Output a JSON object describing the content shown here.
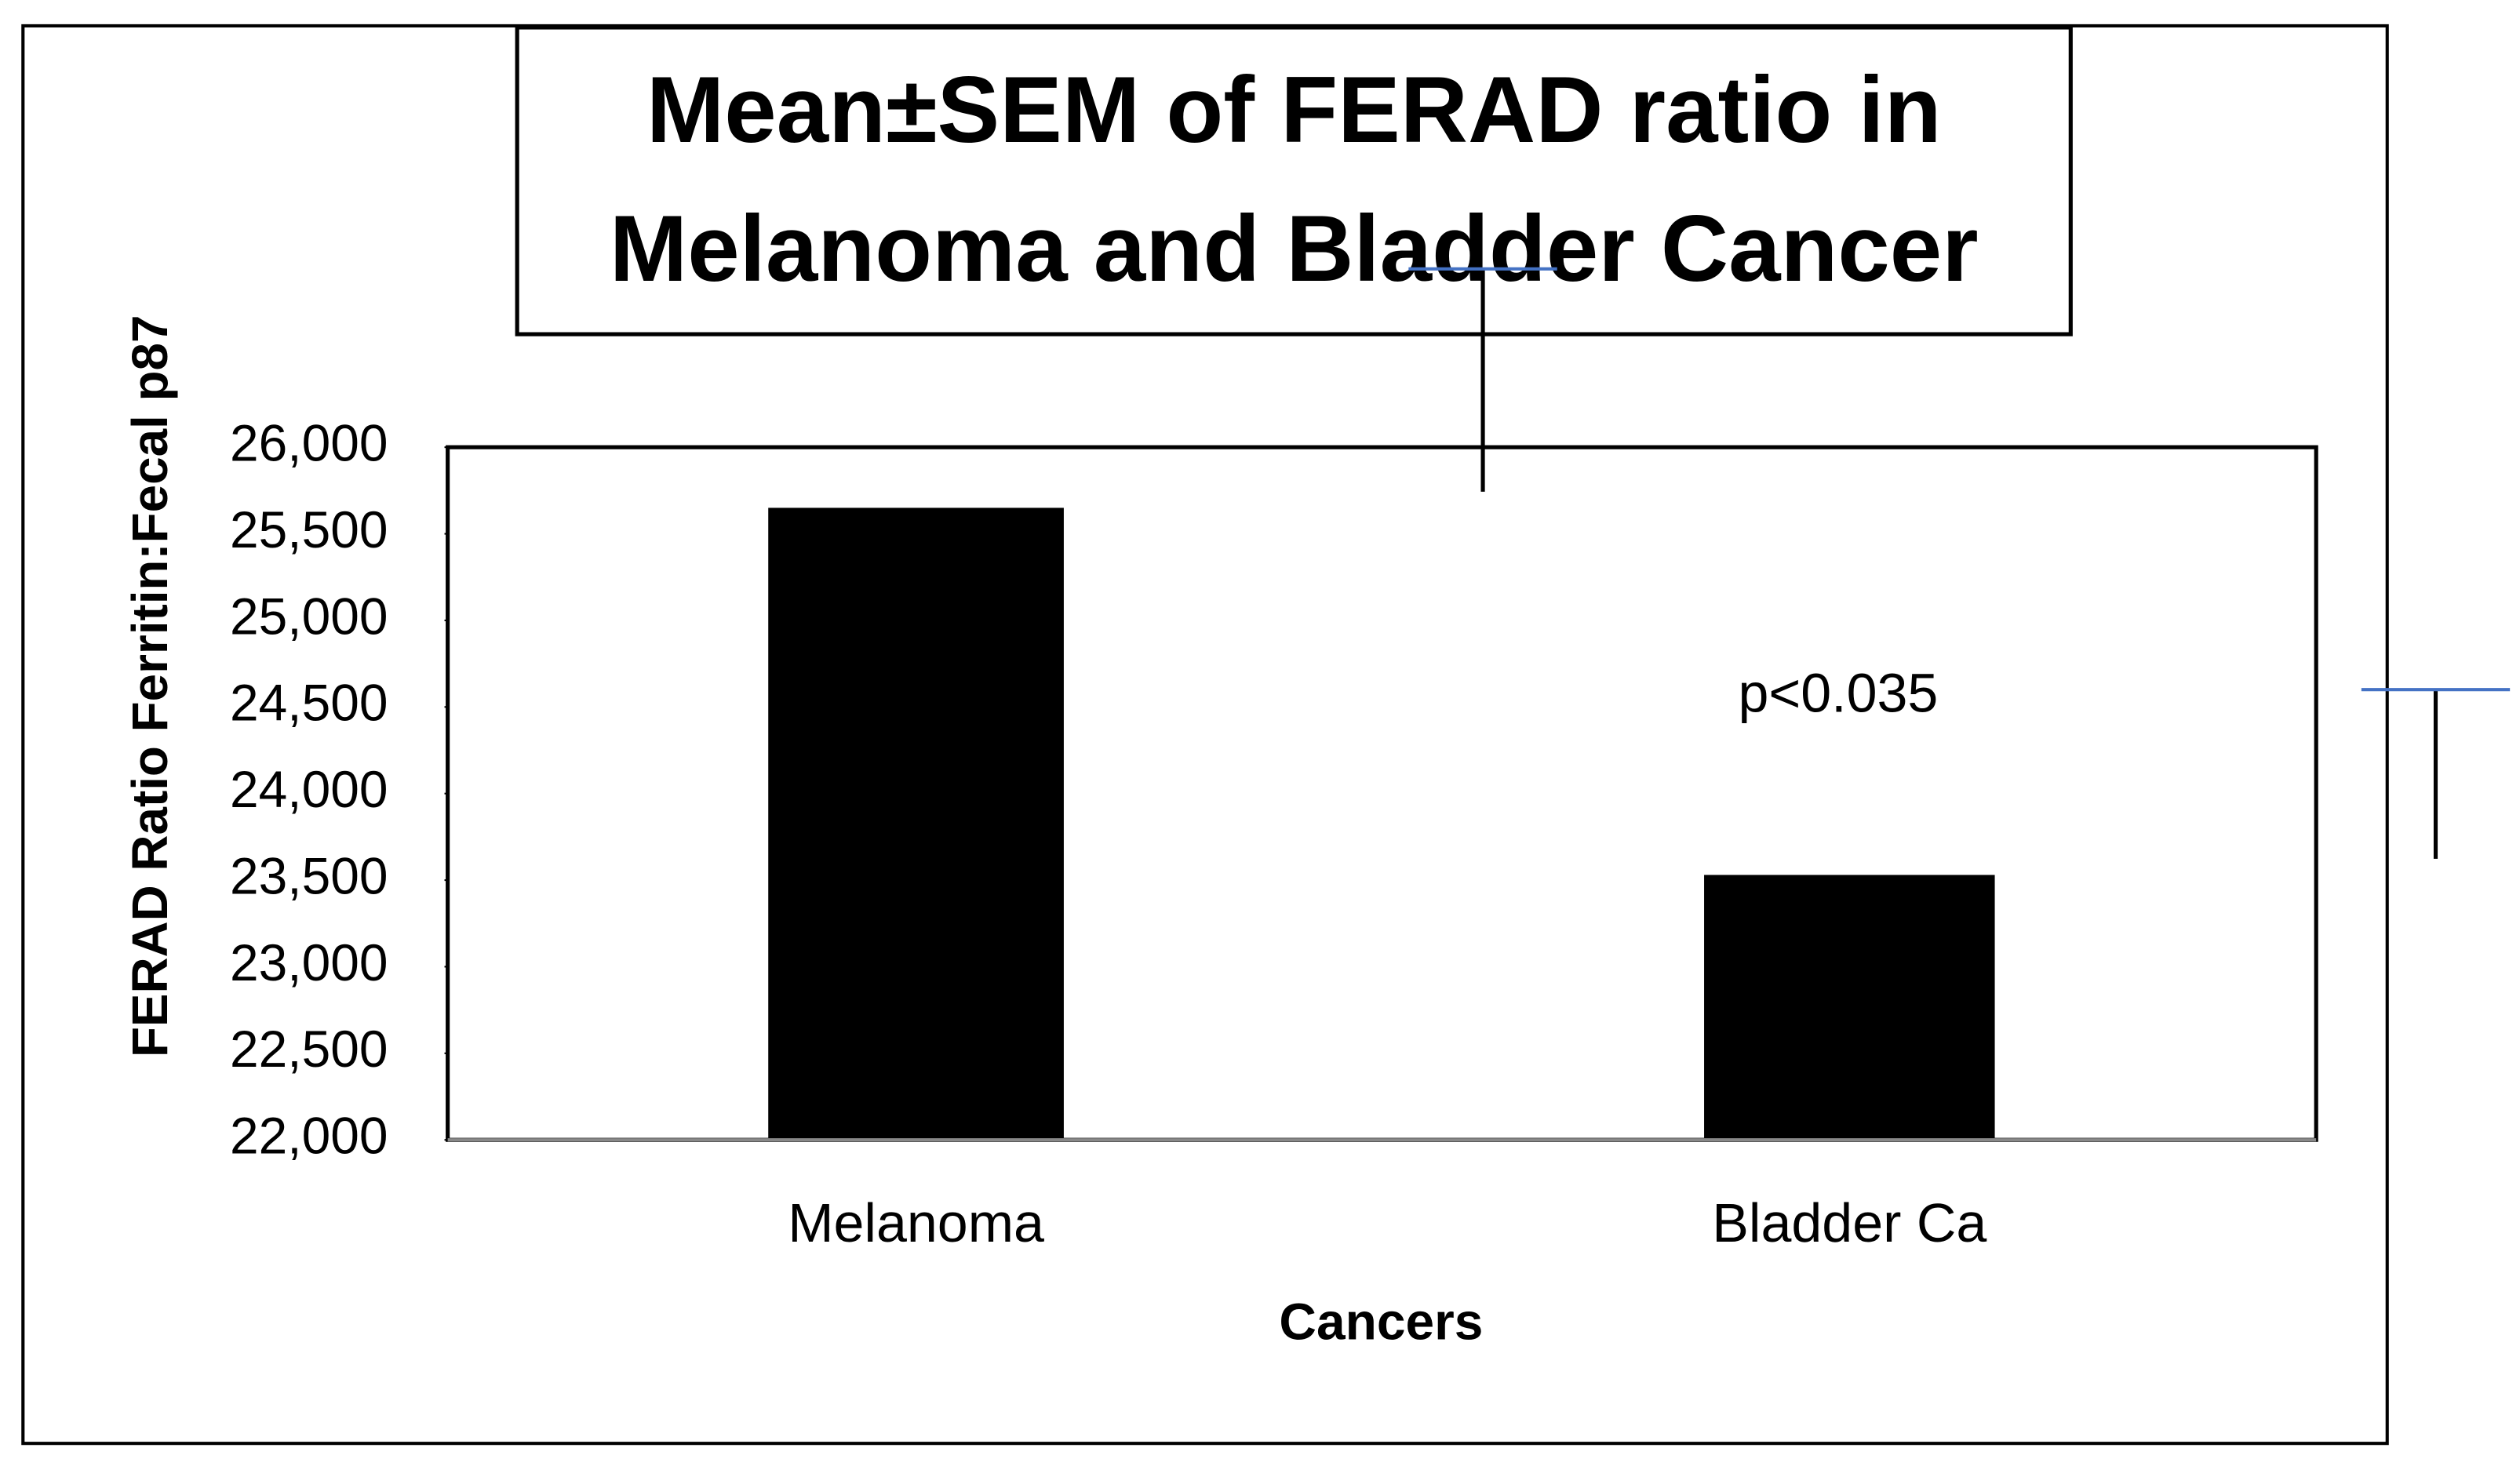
{
  "chart_data": {
    "type": "bar",
    "title": "Mean±SEM of FERAD ratio in Melanoma and Bladder Cancer",
    "x_label": "Cancers",
    "y_label": "FERAD Ratio Ferritin:Fecal p87",
    "annotation": "p<0.035",
    "categories": [
      "Melanoma",
      "Bladder Ca"
    ],
    "values": [
      25650,
      23530
    ],
    "errors": [
      1380,
      1070
    ],
    "color": "#000000",
    "error_color": "#000000",
    "cap_color": "#4472c4",
    "ylim": [
      22000,
      26000
    ],
    "yticks": [
      {
        "value": 22000,
        "label": "22,000"
      },
      {
        "value": 22500,
        "label": "22,500"
      },
      {
        "value": 23000,
        "label": "23,000"
      },
      {
        "value": 23500,
        "label": "23,500"
      },
      {
        "value": 24000,
        "label": "24,000"
      },
      {
        "value": 24500,
        "label": "24,500"
      },
      {
        "value": 25000,
        "label": "25,000"
      },
      {
        "value": 25500,
        "label": "25,500"
      },
      {
        "value": 26000,
        "label": "26,000"
      }
    ],
    "grid": false
  }
}
